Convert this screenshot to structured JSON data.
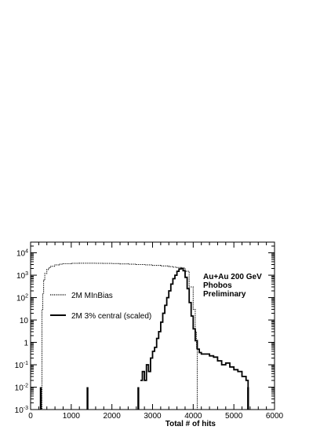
{
  "chart_data": {
    "type": "line",
    "title": "",
    "xlabel": "Total # of hits",
    "ylabel": "",
    "xlim": [
      0,
      6000
    ],
    "ylim": [
      0.001,
      30000
    ],
    "yscale": "log",
    "grid": false,
    "x_ticks": [
      0,
      1000,
      2000,
      3000,
      4000,
      5000,
      6000
    ],
    "x_tick_labels": [
      "0",
      "1000",
      "2000",
      "3000",
      "4000",
      "5000",
      "6000"
    ],
    "y_ticks": [
      {
        "value": 0.001,
        "base": "10",
        "exp": "-3",
        "plain": ""
      },
      {
        "value": 0.01,
        "base": "10",
        "exp": "-2",
        "plain": ""
      },
      {
        "value": 0.1,
        "base": "10",
        "exp": "-1",
        "plain": ""
      },
      {
        "value": 1,
        "base": "",
        "exp": "",
        "plain": "1"
      },
      {
        "value": 10,
        "base": "",
        "exp": "",
        "plain": "10"
      },
      {
        "value": 100,
        "base": "10",
        "exp": "2",
        "plain": ""
      },
      {
        "value": 1000,
        "base": "10",
        "exp": "3",
        "plain": ""
      },
      {
        "value": 10000,
        "base": "10",
        "exp": "4",
        "plain": ""
      }
    ],
    "annotation_lines": [
      "Au+Au 200 GeV",
      "Phobos",
      "Preliminary"
    ],
    "legend_position": "left",
    "series": [
      {
        "name": "2M MInBias",
        "style": "dotted",
        "color": "#000000",
        "x": [
          250,
          280,
          300,
          320,
          350,
          400,
          450,
          500,
          600,
          700,
          800,
          1000,
          1200,
          1400,
          1600,
          1800,
          2000,
          2200,
          2400,
          2600,
          2800,
          3000,
          3200,
          3400,
          3500,
          3600,
          3700,
          3800,
          3900,
          4000,
          4050,
          4080,
          4100
        ],
        "y": [
          0.001,
          30,
          150,
          600,
          1200,
          1800,
          2200,
          2500,
          2900,
          3100,
          3250,
          3400,
          3450,
          3450,
          3400,
          3350,
          3300,
          3200,
          3100,
          3000,
          2900,
          2750,
          2600,
          2400,
          2300,
          2200,
          2100,
          1500,
          300,
          30,
          3,
          0.5,
          0.001
        ]
      },
      {
        "name": "2M 3% central (scaled)",
        "style": "solid",
        "color": "#000000",
        "x": [
          2700,
          2750,
          2800,
          2850,
          2900,
          2950,
          3000,
          3050,
          3100,
          3150,
          3200,
          3250,
          3300,
          3350,
          3400,
          3450,
          3500,
          3550,
          3600,
          3650,
          3700,
          3750,
          3800,
          3850,
          3900,
          3950,
          4000,
          4050,
          4100,
          4150,
          4200,
          4300,
          4400,
          4500,
          4600,
          4700,
          4800,
          4900,
          5000,
          5100,
          5200,
          5300,
          5350
        ],
        "y": [
          0.02,
          0.05,
          0.02,
          0.1,
          0.05,
          0.2,
          0.4,
          0.6,
          1.5,
          3,
          8,
          20,
          45,
          100,
          200,
          400,
          700,
          1000,
          1500,
          1900,
          2000,
          1600,
          800,
          250,
          60,
          15,
          4,
          1.2,
          0.5,
          0.35,
          0.3,
          0.3,
          0.25,
          0.22,
          0.15,
          0.1,
          0.12,
          0.08,
          0.06,
          0.05,
          0.03,
          0.02,
          0.001
        ]
      }
    ],
    "isolated_bins": [
      {
        "x": 250,
        "y": 0.01
      },
      {
        "x": 1400,
        "y": 0.01
      },
      {
        "x": 2650,
        "y": 0.01
      },
      {
        "x": 5350,
        "y": 0.01
      }
    ]
  }
}
